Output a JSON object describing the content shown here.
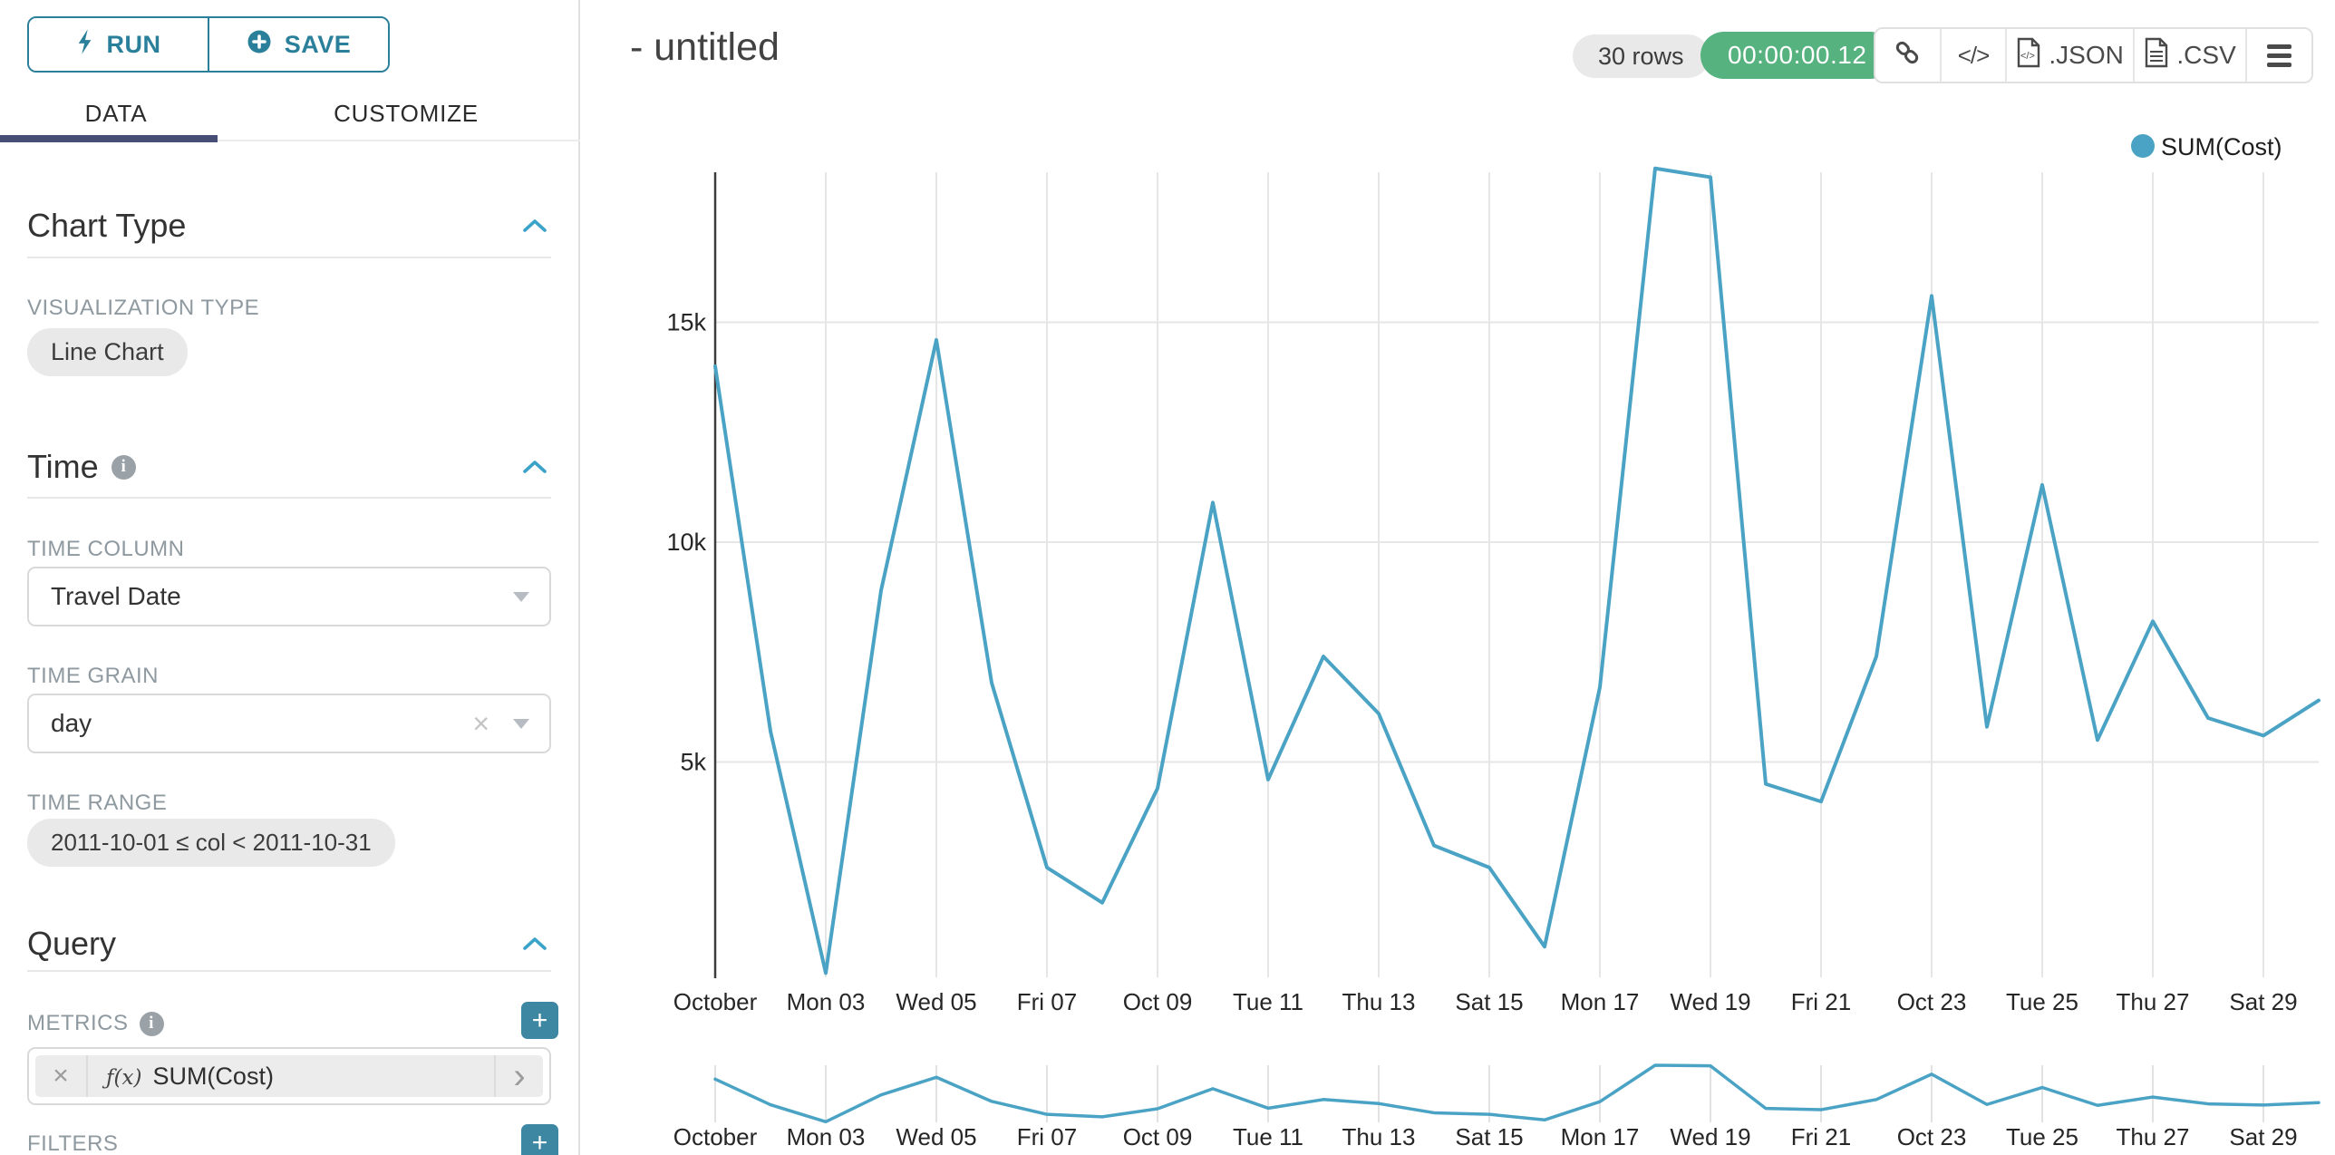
{
  "toolbar": {
    "run_label": "RUN",
    "save_label": "SAVE"
  },
  "tabs": {
    "data": "DATA",
    "customize": "CUSTOMIZE"
  },
  "panels": {
    "chart_type": {
      "title": "Chart Type",
      "visualization_type_label": "VISUALIZATION TYPE",
      "visualization_type_value": "Line Chart"
    },
    "time": {
      "title": "Time",
      "time_column_label": "TIME COLUMN",
      "time_column_value": "Travel Date",
      "time_grain_label": "TIME GRAIN",
      "time_grain_value": "day",
      "time_range_label": "TIME RANGE",
      "time_range_value": "2011-10-01 ≤ col < 2011-10-31"
    },
    "query": {
      "title": "Query",
      "metrics_label": "METRICS",
      "metric_fx": "ƒ(x)",
      "metric_value": "SUM(Cost)",
      "filters_label": "FILTERS"
    }
  },
  "header": {
    "title": "- untitled",
    "rows_badge": "30 rows",
    "timer_badge": "00:00:00.12",
    "json_label": ".JSON",
    "csv_label": ".CSV"
  },
  "chart_data": {
    "type": "line",
    "legend_position": "top-right",
    "grid": true,
    "x_is_time": true,
    "x_tick_labels": [
      "October",
      "Mon 03",
      "Wed 05",
      "Fri 07",
      "Oct 09",
      "Tue 11",
      "Thu 13",
      "Sat 15",
      "Mon 17",
      "Wed 19",
      "Fri 21",
      "Oct 23",
      "Tue 25",
      "Thu 27",
      "Sat 29"
    ],
    "y_tick_labels": [
      "5k",
      "10k",
      "15k"
    ],
    "y_tick_values": [
      5000,
      10000,
      15000
    ],
    "ylim": [
      0,
      18600
    ],
    "x_days": [
      1,
      2,
      3,
      4,
      5,
      6,
      7,
      8,
      9,
      10,
      11,
      12,
      13,
      14,
      15,
      16,
      17,
      18,
      19,
      20,
      21,
      22,
      23,
      24,
      25,
      26,
      27,
      28,
      29,
      30
    ],
    "series": [
      {
        "name": "SUM(Cost)",
        "color": "#4aa3c4",
        "values": [
          14000,
          5700,
          200,
          8900,
          14600,
          6800,
          2600,
          1800,
          4400,
          10900,
          4600,
          7400,
          6100,
          3100,
          2600,
          800,
          6700,
          18500,
          18300,
          4500,
          4100,
          7400,
          15600,
          5800,
          11300,
          5500,
          8200,
          6000,
          5600,
          6400
        ]
      }
    ],
    "context_brush_chart": true
  }
}
